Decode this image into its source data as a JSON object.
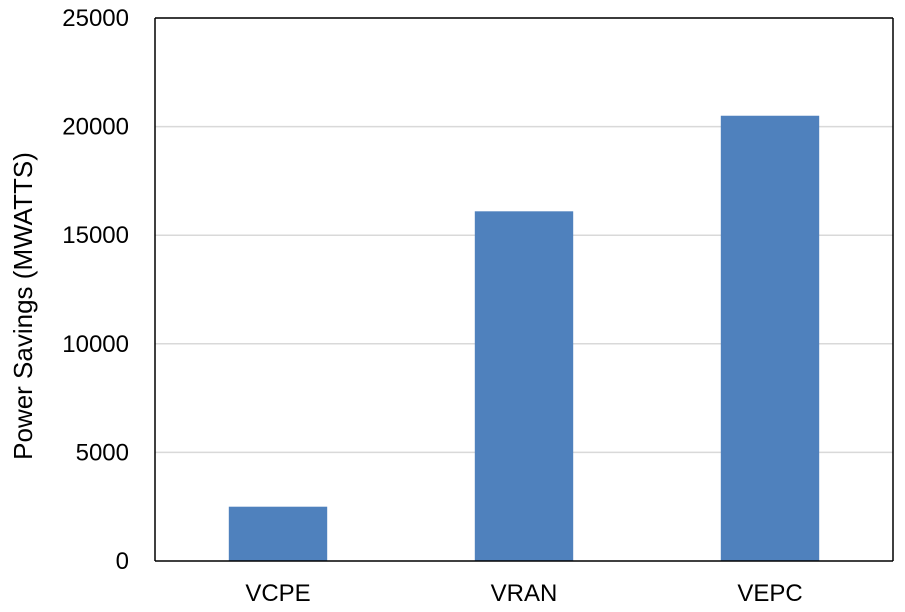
{
  "chart_data": {
    "type": "bar",
    "title": "",
    "xlabel": "",
    "ylabel": "Power Savings (MWATTS)",
    "categories": [
      "VCPE",
      "VRAN",
      "VEPC"
    ],
    "values": [
      2500,
      16100,
      20500
    ],
    "ylim": [
      0,
      25000
    ],
    "yticks": [
      0,
      5000,
      10000,
      15000,
      20000,
      25000
    ],
    "grid": true,
    "legend": "none",
    "bar_color": "#4f81bd",
    "grid_color": "#d9d9d9",
    "axis_color": "#000000"
  }
}
